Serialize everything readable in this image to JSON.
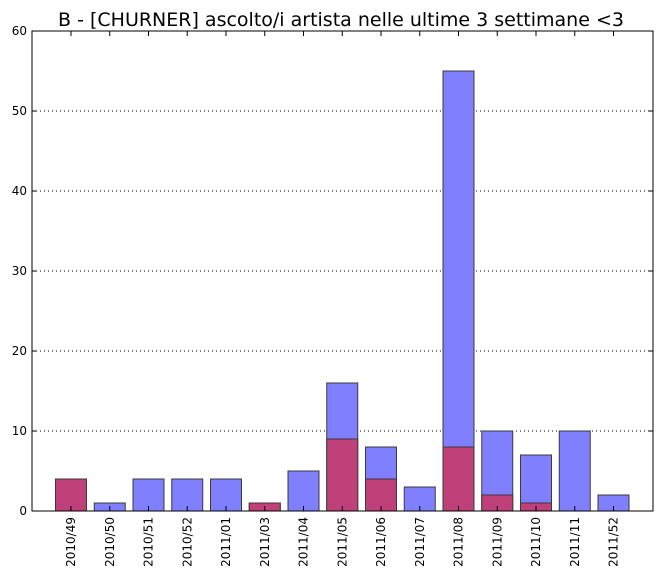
{
  "chart_data": {
    "type": "bar",
    "title": "B - [CHURNER] ascolto/i artista nelle ultime 3 settimane <3",
    "xlabel": "",
    "ylabel": "",
    "categories": [
      "2010/49",
      "2010/50",
      "2010/51",
      "2010/52",
      "2011/01",
      "2011/03",
      "2011/04",
      "2011/05",
      "2011/06",
      "2011/07",
      "2011/08",
      "2011/09",
      "2011/10",
      "2011/11",
      "2011/52"
    ],
    "series": [
      {
        "color": "#8080ff",
        "values": [
          4,
          1,
          4,
          4,
          4,
          1,
          5,
          16,
          8,
          3,
          55,
          10,
          7,
          10,
          2
        ]
      },
      {
        "color": "#c0407a",
        "values": [
          4,
          0,
          0,
          0,
          0,
          1,
          0,
          9,
          4,
          0,
          8,
          2,
          1,
          0,
          0
        ]
      }
    ],
    "ylim": [
      0,
      60
    ],
    "yticks": [
      0,
      10,
      20,
      30,
      40,
      50,
      60
    ],
    "grid": "horizontal-dotted",
    "legend": "none"
  }
}
